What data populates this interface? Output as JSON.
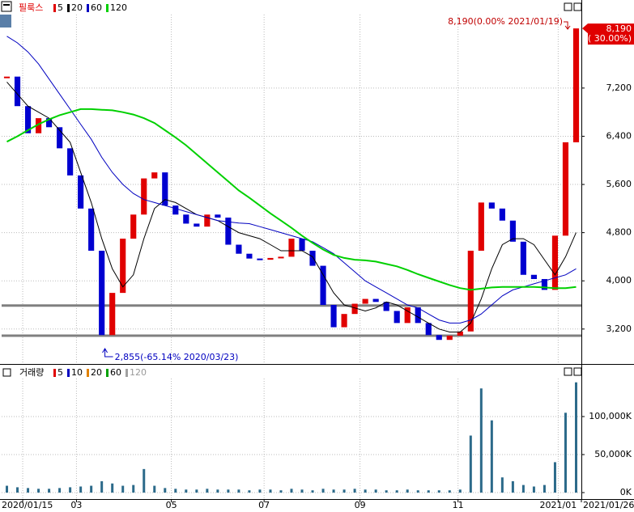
{
  "chart_data": {
    "type": "candle-line",
    "title": "필룩스",
    "high_label": "8,190(0.00% 2021/01/19)",
    "low_label": "2,855(-65.14% 2020/03/23)",
    "last_price_label": "8,190",
    "last_change_label": "( 30.00%)",
    "up_color": "#e00000",
    "down_color": "#0000d0",
    "grid": true,
    "xlim": [
      -0.5,
      54.5
    ],
    "xticks": [
      {
        "value": 1.5,
        "label": "2020/01/15"
      },
      {
        "value": 6.6,
        "label": "03"
      },
      {
        "value": 15.6,
        "label": "05"
      },
      {
        "value": 24.4,
        "label": "07"
      },
      {
        "value": 33.5,
        "label": "09"
      },
      {
        "value": 42.8,
        "label": "11"
      },
      {
        "value": 52.3,
        "label": "2021/01"
      },
      {
        "value": 54.5,
        "label": "2021/01/26"
      }
    ],
    "ylim": [
      2620,
      8420
    ],
    "yticks": [
      {
        "value": 3200,
        "label": "3,200"
      },
      {
        "value": 4000,
        "label": "4,000"
      },
      {
        "value": 4800,
        "label": "4,800"
      },
      {
        "value": 5600,
        "label": "5,600"
      },
      {
        "value": 6400,
        "label": "6,400"
      },
      {
        "value": 7200,
        "label": "7,200"
      }
    ],
    "hlines": [
      3590,
      3090
    ],
    "x": [
      0,
      1,
      2,
      3,
      4,
      5,
      6,
      7,
      8,
      9,
      10,
      11,
      12,
      13,
      14,
      15,
      16,
      17,
      18,
      19,
      20,
      21,
      22,
      23,
      24,
      25,
      26,
      27,
      28,
      29,
      30,
      31,
      32,
      33,
      34,
      35,
      36,
      37,
      38,
      39,
      40,
      41,
      42,
      43,
      44,
      45,
      46,
      47,
      48,
      49,
      50,
      51,
      52,
      53,
      54
    ],
    "close": [
      7390,
      6900,
      6450,
      6700,
      6550,
      6200,
      5750,
      5200,
      4500,
      3100,
      3800,
      4700,
      5100,
      5700,
      5800,
      5250,
      5100,
      4950,
      4900,
      5100,
      5050,
      4600,
      4450,
      4370,
      4350,
      4380,
      4400,
      4700,
      4500,
      4250,
      3600,
      3230,
      3450,
      3620,
      3700,
      3650,
      3500,
      3300,
      3560,
      3300,
      3100,
      3020,
      3090,
      3160,
      4500,
      5300,
      5200,
      5000,
      4650,
      4100,
      4030,
      3850,
      4750,
      6300,
      8190
    ],
    "series": [
      {
        "name": "5",
        "color": "#e00000",
        "values": [
          7400,
          7050,
          6700,
          6650,
          6600,
          6350,
          5950,
          5450,
          4850,
          3900,
          3700,
          4300,
          4900,
          5400,
          5700,
          5500,
          5200,
          5000,
          4950,
          5000,
          5050,
          4800,
          4550,
          4420,
          4370,
          4370,
          4400,
          4550,
          4550,
          4350,
          3850,
          3400,
          3380,
          3550,
          3660,
          3670,
          3560,
          3400,
          3430,
          3380,
          3200,
          3060,
          3060,
          3130,
          3900,
          4800,
          5150,
          5050,
          4800,
          4300,
          4050,
          3900,
          4300,
          5500,
          7200
        ]
      },
      {
        "name": "20",
        "color": "#000000",
        "values": [
          7300,
          7100,
          6900,
          6800,
          6700,
          6500,
          6300,
          5800,
          5300,
          4700,
          4200,
          3900,
          4100,
          4700,
          5200,
          5350,
          5300,
          5200,
          5100,
          5050,
          5000,
          4900,
          4800,
          4750,
          4700,
          4600,
          4500,
          4500,
          4500,
          4400,
          4100,
          3800,
          3600,
          3550,
          3500,
          3550,
          3650,
          3600,
          3500,
          3400,
          3300,
          3200,
          3150,
          3150,
          3300,
          3700,
          4200,
          4600,
          4700,
          4700,
          4600,
          4350,
          4100,
          4400,
          4800
        ]
      },
      {
        "name": "60",
        "color": "#0000c0",
        "values": [
          8060,
          7950,
          7800,
          7600,
          7350,
          7100,
          6850,
          6600,
          6350,
          6050,
          5800,
          5600,
          5450,
          5350,
          5300,
          5250,
          5200,
          5150,
          5100,
          5050,
          5000,
          4980,
          4960,
          4950,
          4900,
          4850,
          4800,
          4750,
          4700,
          4650,
          4550,
          4450,
          4300,
          4150,
          4000,
          3900,
          3800,
          3700,
          3600,
          3550,
          3450,
          3350,
          3300,
          3300,
          3350,
          3450,
          3600,
          3750,
          3850,
          3900,
          3950,
          4000,
          4050,
          4100,
          4200
        ]
      },
      {
        "name": "120",
        "color": "#00d000",
        "values": [
          6310,
          6400,
          6500,
          6600,
          6680,
          6750,
          6800,
          6850,
          6850,
          6840,
          6830,
          6800,
          6760,
          6700,
          6620,
          6500,
          6380,
          6250,
          6100,
          5950,
          5800,
          5650,
          5500,
          5380,
          5250,
          5120,
          5000,
          4880,
          4750,
          4630,
          4520,
          4430,
          4380,
          4350,
          4340,
          4320,
          4280,
          4240,
          4180,
          4110,
          4050,
          3990,
          3930,
          3880,
          3850,
          3870,
          3890,
          3900,
          3900,
          3900,
          3900,
          3890,
          3880,
          3880,
          3900
        ]
      }
    ],
    "volume": {
      "name": "거래량",
      "legend": [
        "5",
        "10",
        "20",
        "60",
        "120"
      ],
      "legend_colors": [
        "#e00000",
        "#0000c0",
        "#e08000",
        "#00a000",
        "#a0a0a0"
      ],
      "color": "#2c6a8a",
      "ylim": [
        -8500,
        150000
      ],
      "yticks": [
        {
          "value": 0,
          "label": "0K"
        },
        {
          "value": 50000,
          "label": "50,000K"
        },
        {
          "value": 100000,
          "label": "100,000K"
        }
      ],
      "values": [
        9000,
        7000,
        6000,
        5000,
        5000,
        6000,
        7000,
        8000,
        9000,
        15000,
        12000,
        9000,
        10000,
        31000,
        9000,
        6000,
        5000,
        4000,
        4000,
        5000,
        4000,
        4000,
        4000,
        3000,
        4000,
        4000,
        3000,
        5000,
        4000,
        3000,
        5000,
        4000,
        4000,
        5000,
        4000,
        4000,
        3000,
        3000,
        4000,
        3000,
        3000,
        3000,
        3000,
        4000,
        75000,
        137000,
        95000,
        20000,
        15000,
        10000,
        8000,
        10000,
        40000,
        105000,
        145000
      ]
    }
  }
}
